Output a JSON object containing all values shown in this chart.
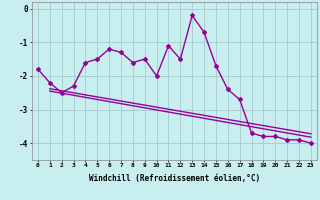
{
  "xlabel": "Windchill (Refroidissement éolien,°C)",
  "hours": [
    0,
    1,
    2,
    3,
    4,
    5,
    6,
    7,
    8,
    9,
    10,
    11,
    12,
    13,
    14,
    15,
    16,
    17,
    18,
    19,
    20,
    21,
    22,
    23
  ],
  "windchill": [
    -1.8,
    -2.2,
    -2.5,
    -2.3,
    -1.6,
    -1.5,
    -1.2,
    -1.3,
    -1.6,
    -1.5,
    -2.0,
    -1.1,
    -1.5,
    -0.2,
    -0.7,
    -1.7,
    -2.4,
    -2.7,
    -3.7,
    -3.8,
    -3.8,
    -3.9,
    -3.9,
    -4.0
  ],
  "trend_x": [
    1,
    23
  ],
  "trend_line1_y": [
    -2.45,
    -3.82
  ],
  "trend_line2_y": [
    -2.38,
    -3.72
  ],
  "line_color": "#990099",
  "bg_color": "#c8eef0",
  "grid_color": "#aacfd2",
  "ylim": [
    -4.5,
    0.2
  ],
  "xlim": [
    -0.5,
    23.5
  ],
  "yticks": [
    0,
    -1,
    -2,
    -3,
    -4
  ],
  "xlabel_fontsize": 5.5,
  "tick_fontsize": 4.5
}
